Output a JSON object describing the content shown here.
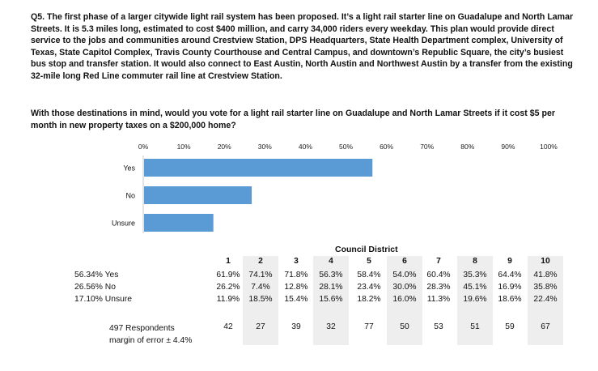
{
  "question": {
    "text": "Q5. The first phase of a larger citywide light rail system has been proposed. It’s a light rail starter line on Guadalupe and North Lamar Streets. It is 5.3 miles long, estimated to cost $400 million, and carry 34,000 riders every weekday. This plan would provide direct service to the jobs and communities around Crestview Station, DPS Headquarters, State Health Department complex, University of Texas, State Capitol Complex, Travis County Courthouse and Central Campus, and downtown’s Republic Square, the city’s busiest bus stop and transfer station. It would also connect to East Austin, North Austin and Northwest Austin by a transfer from the existing 32-mile long Red Line commuter rail line at Crestview Station.",
    "prompt": "With those destinations in mind, would you vote for a light rail starter line on Guadalupe and North Lamar Streets if it cost $5 per month in new property taxes on a $200,000 home?"
  },
  "chart_data": {
    "type": "bar",
    "orientation": "horizontal",
    "categories": [
      "Yes",
      "No",
      "Unsure"
    ],
    "values": [
      56.34,
      26.56,
      17.1
    ],
    "xlim": [
      0,
      100
    ],
    "xticks": [
      "0%",
      "10%",
      "20%",
      "30%",
      "40%",
      "50%",
      "60%",
      "70%",
      "80%",
      "90%",
      "100%"
    ],
    "grid": false,
    "bar_color": "#5b9bd5"
  },
  "table": {
    "title": "Council District",
    "districts": [
      "1",
      "2",
      "3",
      "4",
      "5",
      "6",
      "7",
      "8",
      "9",
      "10"
    ],
    "rows": [
      {
        "label": "56.34% Yes",
        "values": [
          "61.9%",
          "74.1%",
          "71.8%",
          "56.3%",
          "58.4%",
          "54.0%",
          "60.4%",
          "35.3%",
          "64.4%",
          "41.8%"
        ]
      },
      {
        "label": "26.56% No",
        "values": [
          "26.2%",
          "7.4%",
          "12.8%",
          "28.1%",
          "23.4%",
          "30.0%",
          "28.3%",
          "45.1%",
          "16.9%",
          "35.8%"
        ]
      },
      {
        "label": "17.10% Unsure",
        "values": [
          "11.9%",
          "18.5%",
          "15.4%",
          "15.6%",
          "18.2%",
          "16.0%",
          "11.3%",
          "19.6%",
          "18.6%",
          "22.4%"
        ]
      }
    ],
    "respondents_label": "497 Respondents",
    "margin_label": "margin of error ± 4.4%",
    "respondents": [
      "42",
      "27",
      "39",
      "32",
      "77",
      "50",
      "53",
      "51",
      "59",
      "67"
    ],
    "shade_color": "#eeeeee"
  }
}
